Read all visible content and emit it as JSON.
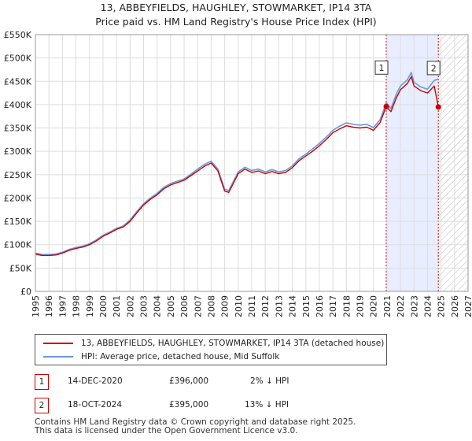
{
  "title_line1": "13, ABBEYFIELDS, HAUGHLEY, STOWMARKET, IP14 3TA",
  "title_line2": "Price paid vs. HM Land Registry's House Price Index (HPI)",
  "colors": {
    "price_paid": "#cc0000",
    "hpi": "#6699dd",
    "highlight": "#e8eeff",
    "marker": "#cc0000"
  },
  "chart_data": {
    "type": "line",
    "x_range": [
      1995,
      2027
    ],
    "ylim": [
      0,
      550000
    ],
    "y_ticks": [
      0,
      50000,
      100000,
      150000,
      200000,
      250000,
      300000,
      350000,
      400000,
      450000,
      500000,
      550000
    ],
    "y_tick_labels": [
      "£0",
      "£50K",
      "£100K",
      "£150K",
      "£200K",
      "£250K",
      "£300K",
      "£350K",
      "£400K",
      "£450K",
      "£500K",
      "£550K"
    ],
    "x_ticks": [
      "1995",
      "1996",
      "1997",
      "1998",
      "1999",
      "2000",
      "2001",
      "2002",
      "2003",
      "2004",
      "2005",
      "2006",
      "2007",
      "2008",
      "2009",
      "2010",
      "2011",
      "2012",
      "2013",
      "2014",
      "2015",
      "2016",
      "2017",
      "2018",
      "2019",
      "2020",
      "2021",
      "2022",
      "2023",
      "2024",
      "2025",
      "2026",
      "2027"
    ],
    "grid": true,
    "highlight_span": [
      2020.95,
      2024.8
    ],
    "hatched_from": 2024.8,
    "series": [
      {
        "name": "13, ABBEYFIELDS, HAUGHLEY, STOWMARKET, IP14 3TA (detached house)",
        "key": "price_paid",
        "points": [
          [
            1995.0,
            80000
          ],
          [
            1995.5,
            77000
          ],
          [
            1996.0,
            77000
          ],
          [
            1996.5,
            78000
          ],
          [
            1997.0,
            82000
          ],
          [
            1997.5,
            88000
          ],
          [
            1998.0,
            92000
          ],
          [
            1998.5,
            95000
          ],
          [
            1999.0,
            100000
          ],
          [
            1999.5,
            108000
          ],
          [
            2000.0,
            118000
          ],
          [
            2000.5,
            125000
          ],
          [
            2001.0,
            133000
          ],
          [
            2001.5,
            138000
          ],
          [
            2002.0,
            150000
          ],
          [
            2002.5,
            168000
          ],
          [
            2003.0,
            185000
          ],
          [
            2003.5,
            197000
          ],
          [
            2004.0,
            207000
          ],
          [
            2004.5,
            220000
          ],
          [
            2005.0,
            228000
          ],
          [
            2005.5,
            233000
          ],
          [
            2006.0,
            238000
          ],
          [
            2006.5,
            248000
          ],
          [
            2007.0,
            258000
          ],
          [
            2007.5,
            268000
          ],
          [
            2008.0,
            275000
          ],
          [
            2008.5,
            258000
          ],
          [
            2009.0,
            215000
          ],
          [
            2009.3,
            212000
          ],
          [
            2009.7,
            235000
          ],
          [
            2010.0,
            252000
          ],
          [
            2010.5,
            262000
          ],
          [
            2011.0,
            255000
          ],
          [
            2011.5,
            258000
          ],
          [
            2012.0,
            252000
          ],
          [
            2012.5,
            257000
          ],
          [
            2013.0,
            252000
          ],
          [
            2013.5,
            255000
          ],
          [
            2014.0,
            265000
          ],
          [
            2014.5,
            280000
          ],
          [
            2015.0,
            290000
          ],
          [
            2015.5,
            300000
          ],
          [
            2016.0,
            312000
          ],
          [
            2016.5,
            325000
          ],
          [
            2017.0,
            340000
          ],
          [
            2017.5,
            348000
          ],
          [
            2018.0,
            355000
          ],
          [
            2018.5,
            352000
          ],
          [
            2019.0,
            350000
          ],
          [
            2019.5,
            352000
          ],
          [
            2020.0,
            345000
          ],
          [
            2020.5,
            362000
          ],
          [
            2020.95,
            396000
          ],
          [
            2021.3,
            385000
          ],
          [
            2021.7,
            415000
          ],
          [
            2022.0,
            432000
          ],
          [
            2022.5,
            445000
          ],
          [
            2022.8,
            460000
          ],
          [
            2023.0,
            440000
          ],
          [
            2023.5,
            430000
          ],
          [
            2024.0,
            425000
          ],
          [
            2024.5,
            440000
          ],
          [
            2024.8,
            395000
          ]
        ]
      },
      {
        "name": "HPI: Average price, detached house, Mid Suffolk",
        "key": "hpi",
        "points": [
          [
            1995.0,
            82000
          ],
          [
            1995.5,
            79000
          ],
          [
            1996.0,
            79000
          ],
          [
            1996.5,
            80000
          ],
          [
            1997.0,
            84000
          ],
          [
            1997.5,
            90000
          ],
          [
            1998.0,
            94000
          ],
          [
            1998.5,
            97000
          ],
          [
            1999.0,
            102000
          ],
          [
            1999.5,
            110000
          ],
          [
            2000.0,
            120000
          ],
          [
            2000.5,
            127000
          ],
          [
            2001.0,
            135000
          ],
          [
            2001.5,
            140000
          ],
          [
            2002.0,
            153000
          ],
          [
            2002.5,
            171000
          ],
          [
            2003.0,
            188000
          ],
          [
            2003.5,
            200000
          ],
          [
            2004.0,
            210000
          ],
          [
            2004.5,
            223000
          ],
          [
            2005.0,
            231000
          ],
          [
            2005.5,
            236000
          ],
          [
            2006.0,
            241000
          ],
          [
            2006.5,
            251000
          ],
          [
            2007.0,
            262000
          ],
          [
            2007.5,
            272000
          ],
          [
            2008.0,
            279000
          ],
          [
            2008.5,
            262000
          ],
          [
            2009.0,
            219000
          ],
          [
            2009.3,
            216000
          ],
          [
            2009.7,
            239000
          ],
          [
            2010.0,
            256000
          ],
          [
            2010.5,
            266000
          ],
          [
            2011.0,
            259000
          ],
          [
            2011.5,
            262000
          ],
          [
            2012.0,
            256000
          ],
          [
            2012.5,
            261000
          ],
          [
            2013.0,
            256000
          ],
          [
            2013.5,
            259000
          ],
          [
            2014.0,
            269000
          ],
          [
            2014.5,
            284000
          ],
          [
            2015.0,
            294000
          ],
          [
            2015.5,
            305000
          ],
          [
            2016.0,
            317000
          ],
          [
            2016.5,
            330000
          ],
          [
            2017.0,
            345000
          ],
          [
            2017.5,
            354000
          ],
          [
            2018.0,
            361000
          ],
          [
            2018.5,
            358000
          ],
          [
            2019.0,
            356000
          ],
          [
            2019.5,
            358000
          ],
          [
            2020.0,
            351000
          ],
          [
            2020.5,
            368000
          ],
          [
            2020.95,
            404000
          ],
          [
            2021.3,
            392000
          ],
          [
            2021.7,
            423000
          ],
          [
            2022.0,
            440000
          ],
          [
            2022.5,
            453000
          ],
          [
            2022.8,
            469000
          ],
          [
            2023.0,
            448000
          ],
          [
            2023.5,
            438000
          ],
          [
            2024.0,
            433000
          ],
          [
            2024.5,
            452000
          ],
          [
            2024.8,
            455000
          ]
        ]
      }
    ],
    "annotations": [
      {
        "label": "1",
        "x": 2020.95,
        "value": 396000
      },
      {
        "label": "2",
        "x": 2024.8,
        "value": 395000
      }
    ]
  },
  "legend": {
    "price_paid": "13, ABBEYFIELDS, HAUGHLEY, STOWMARKET, IP14 3TA (detached house)",
    "hpi": "HPI: Average price, detached house, Mid Suffolk"
  },
  "transactions": [
    {
      "num": "1",
      "date": "14-DEC-2020",
      "price": "£396,000",
      "delta": "2% ↓ HPI"
    },
    {
      "num": "2",
      "date": "18-OCT-2024",
      "price": "£395,000",
      "delta": "13% ↓ HPI"
    }
  ],
  "footer": {
    "line1": "Contains HM Land Registry data © Crown copyright and database right 2025.",
    "line2": "This data is licensed under the Open Government Licence v3.0."
  }
}
